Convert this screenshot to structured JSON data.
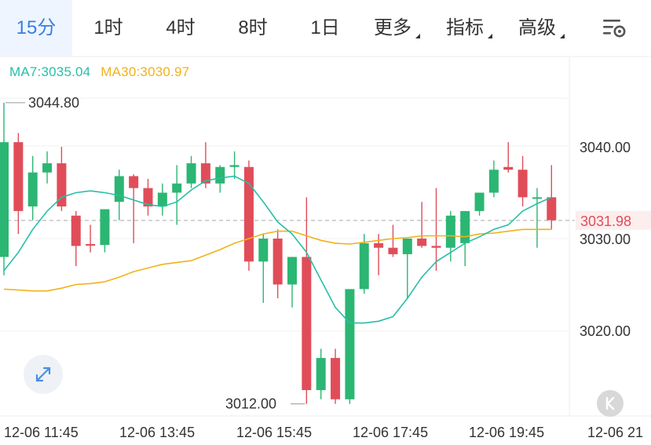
{
  "tabs": [
    {
      "label": "15分",
      "active": true
    },
    {
      "label": "1时"
    },
    {
      "label": "4时"
    },
    {
      "label": "8时"
    },
    {
      "label": "1日"
    },
    {
      "label": "更多"
    },
    {
      "label": "指标"
    },
    {
      "label": "高级"
    }
  ],
  "icons": {
    "settings": "chart-settings-icon",
    "expand": "expand-icon",
    "k": "k-chart-icon"
  },
  "legend": {
    "ma7": "MA7:3035.04",
    "ma30": "MA30:3030.97"
  },
  "colors": {
    "up": "#2bb673",
    "down": "#e04d59",
    "ma7": "#27bfa7",
    "ma30": "#f1b21a",
    "current_price_bg": "#fdeeee",
    "current_price_text": "#e04d59",
    "accent": "#3a7fe0"
  },
  "chart_data": {
    "type": "candlestick",
    "y_axis": {
      "ticks": [
        "3040.00",
        "3030.00",
        "3020.00"
      ],
      "range": [
        3011,
        3047
      ]
    },
    "x_axis": {
      "ticks": [
        "12-06 11:45",
        "12-06 13:45",
        "12-06 15:45",
        "12-06 17:45",
        "12-06 19:45",
        "12-06 21"
      ]
    },
    "high_label": "3044.80",
    "low_label": "3012.00",
    "current_price": "3031.98",
    "grid": "horizontal",
    "candles": [
      {
        "o": 3028.0,
        "h": 3044.8,
        "l": 3026.0,
        "c": 3040.5
      },
      {
        "o": 3040.5,
        "h": 3041.5,
        "l": 3030.5,
        "c": 3033.0
      },
      {
        "o": 3033.5,
        "h": 3039.0,
        "l": 3032.0,
        "c": 3037.2
      },
      {
        "o": 3037.2,
        "h": 3039.5,
        "l": 3036.0,
        "c": 3038.2
      },
      {
        "o": 3038.2,
        "h": 3040.0,
        "l": 3033.0,
        "c": 3033.5
      },
      {
        "o": 3032.5,
        "h": 3033.0,
        "l": 3027.0,
        "c": 3029.2
      },
      {
        "o": 3029.4,
        "h": 3031.5,
        "l": 3028.5,
        "c": 3029.3
      },
      {
        "o": 3029.3,
        "h": 3033.0,
        "l": 3028.5,
        "c": 3033.2
      },
      {
        "o": 3034.0,
        "h": 3037.5,
        "l": 3032.0,
        "c": 3036.8
      },
      {
        "o": 3036.8,
        "h": 3037.0,
        "l": 3029.5,
        "c": 3035.5
      },
      {
        "o": 3035.5,
        "h": 3036.5,
        "l": 3032.5,
        "c": 3033.5
      },
      {
        "o": 3033.5,
        "h": 3036.0,
        "l": 3032.5,
        "c": 3035.0
      },
      {
        "o": 3035.0,
        "h": 3038.0,
        "l": 3031.5,
        "c": 3036.0
      },
      {
        "o": 3036.0,
        "h": 3039.0,
        "l": 3035.5,
        "c": 3038.2
      },
      {
        "o": 3038.2,
        "h": 3040.5,
        "l": 3035.5,
        "c": 3036.0
      },
      {
        "o": 3036.0,
        "h": 3038.0,
        "l": 3035.0,
        "c": 3037.8
      },
      {
        "o": 3037.8,
        "h": 3039.5,
        "l": 3036.5,
        "c": 3038.0
      },
      {
        "o": 3037.8,
        "h": 3038.5,
        "l": 3026.5,
        "c": 3027.5
      },
      {
        "o": 3027.5,
        "h": 3030.5,
        "l": 3023.0,
        "c": 3030.0
      },
      {
        "o": 3030.0,
        "h": 3031.0,
        "l": 3023.5,
        "c": 3025.0
      },
      {
        "o": 3025.0,
        "h": 3028.0,
        "l": 3022.5,
        "c": 3028.0
      },
      {
        "o": 3028.0,
        "h": 3034.5,
        "l": 3012.0,
        "c": 3013.5
      },
      {
        "o": 3013.5,
        "h": 3018.0,
        "l": 3012.5,
        "c": 3017.0
      },
      {
        "o": 3017.0,
        "h": 3018.0,
        "l": 3012.0,
        "c": 3012.5
      },
      {
        "o": 3012.5,
        "h": 3024.5,
        "l": 3012.0,
        "c": 3024.5
      },
      {
        "o": 3024.5,
        "h": 3030.5,
        "l": 3024.0,
        "c": 3029.5
      },
      {
        "o": 3029.5,
        "h": 3030.5,
        "l": 3026.0,
        "c": 3029.0
      },
      {
        "o": 3029.0,
        "h": 3031.5,
        "l": 3028.0,
        "c": 3028.3
      },
      {
        "o": 3028.3,
        "h": 3030.0,
        "l": 3023.5,
        "c": 3030.0
      },
      {
        "o": 3030.0,
        "h": 3034.0,
        "l": 3029.0,
        "c": 3029.2
      },
      {
        "o": 3029.2,
        "h": 3035.5,
        "l": 3026.5,
        "c": 3029.0
      },
      {
        "o": 3029.0,
        "h": 3033.0,
        "l": 3027.5,
        "c": 3032.5
      },
      {
        "o": 3029.5,
        "h": 3033.0,
        "l": 3027.0,
        "c": 3033.0
      },
      {
        "o": 3033.0,
        "h": 3035.0,
        "l": 3032.5,
        "c": 3035.0
      },
      {
        "o": 3035.0,
        "h": 3038.5,
        "l": 3034.5,
        "c": 3037.5
      },
      {
        "o": 3037.8,
        "h": 3040.5,
        "l": 3037.2,
        "c": 3037.5
      },
      {
        "o": 3037.5,
        "h": 3039.0,
        "l": 3033.5,
        "c": 3034.5
      },
      {
        "o": 3034.5,
        "h": 3035.5,
        "l": 3029.0,
        "c": 3034.5
      },
      {
        "o": 3034.5,
        "h": 3038.0,
        "l": 3031.0,
        "c": 3032.0
      }
    ],
    "ma7": [
      3026.5,
      3028.5,
      3031.0,
      3033.0,
      3034.5,
      3035.0,
      3035.2,
      3035.0,
      3034.7,
      3034.2,
      3033.7,
      3033.5,
      3034.0,
      3035.3,
      3036.3,
      3036.6,
      3036.8,
      3036.0,
      3034.0,
      3031.8,
      3030.5,
      3028.5,
      3025.5,
      3022.5,
      3020.8,
      3020.8,
      3021.0,
      3021.5,
      3023.5,
      3025.8,
      3027.5,
      3028.5,
      3029.5,
      3030.2,
      3031.0,
      3031.5,
      3033.0,
      3033.8,
      3034.5
    ],
    "ma30": [
      3024.5,
      3024.4,
      3024.3,
      3024.3,
      3024.6,
      3025.0,
      3025.1,
      3025.3,
      3025.8,
      3026.4,
      3026.8,
      3027.2,
      3027.4,
      3027.6,
      3028.2,
      3028.8,
      3029.5,
      3030.0,
      3030.5,
      3030.8,
      3030.8,
      3030.3,
      3029.8,
      3029.5,
      3029.4,
      3029.6,
      3029.8,
      3030.0,
      3030.1,
      3030.3,
      3030.3,
      3030.3,
      3030.2,
      3030.5,
      3030.6,
      3030.8,
      3031.0,
      3031.0,
      3031.0
    ]
  }
}
